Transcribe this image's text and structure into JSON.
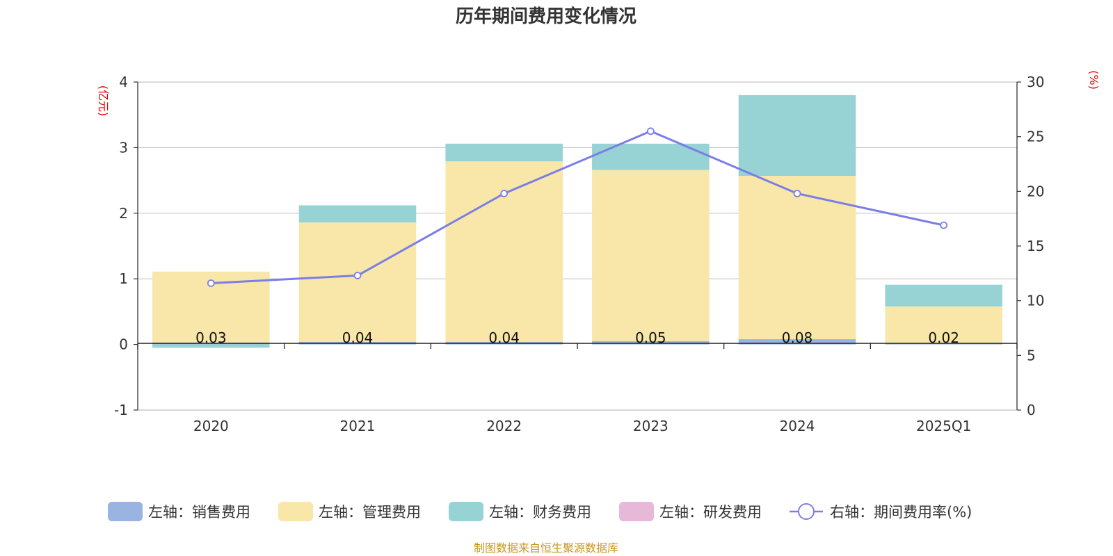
{
  "chart_data": {
    "type": "bar",
    "title": "历年期间费用变化情况",
    "categories": [
      "2020",
      "2021",
      "2022",
      "2023",
      "2024",
      "2025Q1"
    ],
    "left_axis": {
      "unit": "(亿元)",
      "ylim": [
        -1,
        4
      ],
      "ticks": [
        "-1",
        "0",
        "1",
        "2",
        "3",
        "4"
      ]
    },
    "right_axis": {
      "unit": "(%)",
      "ylim": [
        0,
        30
      ],
      "ticks": [
        "0",
        "5",
        "10",
        "15",
        "20",
        "25",
        "30"
      ]
    },
    "grid": true,
    "legend_position": "bottom",
    "series": [
      {
        "name": "左轴：销售费用",
        "type": "bar",
        "axis": "left",
        "color": "#9ab4e2",
        "values": [
          0.03,
          0.04,
          0.04,
          0.05,
          0.08,
          0.02
        ],
        "labels": [
          "0.03",
          "0.04",
          "0.04",
          "0.05",
          "0.08",
          "0.02"
        ]
      },
      {
        "name": "左轴：管理费用",
        "type": "bar",
        "axis": "left",
        "color": "#f8e7a8",
        "values": [
          1.08,
          1.82,
          2.75,
          2.61,
          2.49,
          0.56
        ]
      },
      {
        "name": "左轴：财务费用",
        "type": "bar",
        "axis": "left",
        "color": "#97d3d4",
        "values": [
          -0.05,
          0.26,
          0.27,
          0.4,
          1.23,
          0.33
        ]
      },
      {
        "name": "左轴：研发费用",
        "type": "bar",
        "axis": "left",
        "color": "#e8b8d8",
        "values": [
          0,
          0,
          0,
          0,
          0,
          0
        ]
      },
      {
        "name": "右轴：期间费用率(%)",
        "type": "line",
        "axis": "right",
        "color": "#7b7ee6",
        "values": [
          11.6,
          12.3,
          19.8,
          25.5,
          19.8,
          16.9
        ]
      }
    ],
    "source": "制图数据来自恒生聚源数据库"
  }
}
